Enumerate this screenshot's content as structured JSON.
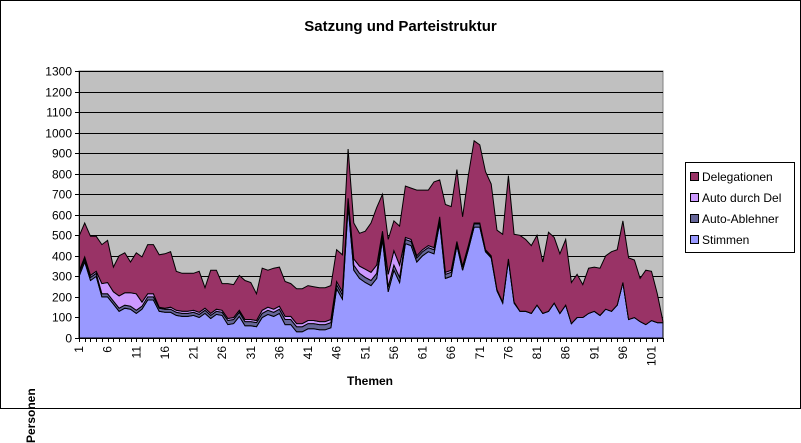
{
  "chart_data": {
    "type": "area",
    "stacked": true,
    "title": "Satzung und Parteistruktur",
    "xlabel": "Themen",
    "ylabel": "Personen",
    "ylim": [
      0,
      1300
    ],
    "yticks": [
      0,
      100,
      200,
      300,
      400,
      500,
      600,
      700,
      800,
      900,
      1000,
      1100,
      1200,
      1300
    ],
    "xtick_labels": [
      "1",
      "6",
      "11",
      "16",
      "21",
      "26",
      "31",
      "36",
      "41",
      "46",
      "51",
      "56",
      "61",
      "66",
      "71",
      "76",
      "81",
      "86",
      "91",
      "96",
      "101"
    ],
    "x_start": 1,
    "x_count": 103,
    "grid": true,
    "plot_background": "#c0c0c0",
    "legend_position": "right",
    "series": [
      {
        "name": "Stimmen",
        "color": "#9999ff",
        "values": [
          300,
          370,
          280,
          300,
          200,
          200,
          165,
          130,
          145,
          140,
          120,
          140,
          185,
          185,
          130,
          125,
          125,
          110,
          105,
          105,
          110,
          100,
          120,
          95,
          115,
          110,
          65,
          70,
          105,
          60,
          60,
          55,
          100,
          115,
          105,
          120,
          65,
          65,
          30,
          30,
          45,
          45,
          40,
          40,
          50,
          240,
          190,
          640,
          330,
          290,
          270,
          255,
          290,
          480,
          225,
          330,
          270,
          460,
          450,
          370,
          400,
          420,
          410,
          560,
          290,
          300,
          450,
          330,
          430,
          540,
          540,
          420,
          390,
          230,
          170,
          380,
          170,
          130,
          130,
          120,
          160,
          120,
          130,
          170,
          120,
          160,
          70,
          100,
          100,
          120,
          130,
          110,
          140,
          130,
          160,
          270,
          90,
          100,
          80,
          65,
          85,
          75,
          75
        ]
      },
      {
        "name": "Auto-Ablehner",
        "color": "#666699",
        "values": [
          15,
          15,
          15,
          15,
          15,
          15,
          15,
          15,
          15,
          15,
          15,
          15,
          15,
          15,
          15,
          15,
          15,
          15,
          15,
          15,
          15,
          15,
          15,
          15,
          15,
          15,
          20,
          20,
          20,
          20,
          20,
          20,
          20,
          20,
          20,
          20,
          25,
          25,
          25,
          25,
          25,
          25,
          25,
          25,
          25,
          20,
          20,
          25,
          25,
          25,
          25,
          25,
          25,
          25,
          25,
          25,
          25,
          20,
          20,
          20,
          20,
          20,
          20,
          20,
          20,
          20,
          15,
          15,
          15,
          15,
          15,
          5,
          5,
          5,
          5,
          5,
          5,
          0,
          0,
          0,
          0,
          0,
          0,
          0,
          0,
          0,
          0,
          0,
          0,
          0,
          0,
          0,
          0,
          0,
          0,
          0,
          0,
          0,
          0,
          0,
          0,
          0,
          0
        ]
      },
      {
        "name": "Auto durch Del",
        "color": "#cc99ff",
        "values": [
          10,
          10,
          10,
          10,
          50,
          55,
          45,
          60,
          60,
          65,
          80,
          20,
          15,
          15,
          5,
          5,
          10,
          10,
          10,
          10,
          10,
          10,
          10,
          10,
          10,
          10,
          10,
          10,
          10,
          10,
          10,
          10,
          15,
          15,
          15,
          15,
          15,
          15,
          15,
          15,
          15,
          15,
          15,
          15,
          15,
          15,
          15,
          15,
          30,
          35,
          40,
          40,
          40,
          15,
          60,
          70,
          60,
          10,
          10,
          10,
          10,
          10,
          10,
          10,
          10,
          10,
          5,
          5,
          5,
          5,
          5,
          5,
          5,
          0,
          0,
          0,
          0,
          0,
          0,
          0,
          0,
          0,
          0,
          0,
          0,
          0,
          0,
          0,
          0,
          0,
          0,
          0,
          0,
          0,
          0,
          0,
          0,
          0,
          0,
          0,
          0,
          0,
          0
        ]
      },
      {
        "name": "Delegationen",
        "color": "#993366",
        "values": [
          170,
          165,
          190,
          170,
          190,
          205,
          120,
          195,
          195,
          150,
          200,
          220,
          240,
          240,
          255,
          265,
          270,
          190,
          185,
          185,
          180,
          200,
          100,
          210,
          190,
          130,
          170,
          160,
          170,
          190,
          180,
          130,
          205,
          180,
          200,
          190,
          170,
          160,
          170,
          170,
          170,
          165,
          165,
          165,
          165,
          155,
          180,
          240,
          175,
          160,
          185,
          240,
          280,
          180,
          170,
          145,
          190,
          250,
          250,
          320,
          290,
          270,
          320,
          180,
          330,
          310,
          350,
          240,
          340,
          400,
          380,
          380,
          350,
          290,
          330,
          405,
          330,
          370,
          350,
          330,
          340,
          250,
          385,
          320,
          290,
          320,
          200,
          210,
          160,
          220,
          215,
          230,
          260,
          290,
          270,
          300,
          300,
          280,
          210,
          265,
          240,
          140,
          5
        ]
      }
    ]
  }
}
